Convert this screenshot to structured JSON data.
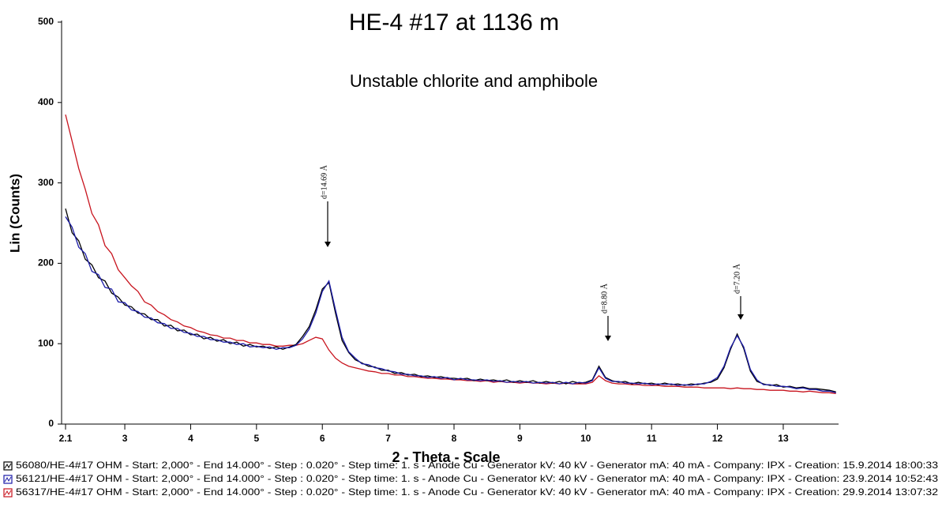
{
  "chart_data": {
    "type": "line",
    "title": "HE-4 #17 at 1136 m",
    "subtitle": "Unstable chlorite and amphibole",
    "x_label": "2 - Theta - Scale",
    "y_label": "Lin (Counts)",
    "annotations": [
      "d=14.69 Å",
      "d=8.80 Å",
      "d=7.20 Å"
    ],
    "x": [
      2.1,
      2.2,
      2.3,
      2.4,
      2.5,
      2.6,
      2.7,
      2.8,
      2.9,
      3.0,
      3.1,
      3.2,
      3.3,
      3.4,
      3.5,
      3.6,
      3.7,
      3.8,
      3.9,
      4.0,
      4.1,
      4.2,
      4.3,
      4.4,
      4.5,
      4.6,
      4.7,
      4.8,
      4.9,
      5.0,
      5.1,
      5.2,
      5.3,
      5.4,
      5.5,
      5.6,
      5.7,
      5.8,
      5.9,
      6.0,
      6.1,
      6.2,
      6.3,
      6.4,
      6.5,
      6.6,
      6.7,
      6.8,
      6.9,
      7.0,
      7.1,
      7.2,
      7.3,
      7.4,
      7.5,
      7.6,
      7.7,
      7.8,
      7.9,
      8.0,
      8.1,
      8.2,
      8.3,
      8.4,
      8.5,
      8.6,
      8.7,
      8.8,
      8.9,
      9.0,
      9.1,
      9.2,
      9.3,
      9.4,
      9.5,
      9.6,
      9.7,
      9.8,
      9.9,
      10.0,
      10.1,
      10.2,
      10.3,
      10.4,
      10.5,
      10.6,
      10.7,
      10.8,
      10.9,
      11.0,
      11.1,
      11.2,
      11.3,
      11.4,
      11.5,
      11.6,
      11.7,
      11.8,
      11.9,
      12.0,
      12.1,
      12.2,
      12.3,
      12.4,
      12.5,
      12.6,
      12.7,
      12.8,
      12.9,
      13.0,
      13.1,
      13.2,
      13.3,
      13.4,
      13.5,
      13.6,
      13.7,
      13.8
    ],
    "series": [
      {
        "name": "56080/HE-4#17 OHM - Start: 2,000° - End 14.000° - Step : 0.020° - Step time: 1. s - Anode Cu - Generator kV: 40 kV - Generator mA: 40 mA - Company: IPX - Creation: 15.9.2014 18:00:33",
        "color": "#000000",
        "values": [
          268,
          238,
          228,
          205,
          198,
          182,
          178,
          163,
          158,
          148,
          146,
          138,
          137,
          130,
          130,
          122,
          123,
          116,
          117,
          111,
          112,
          106,
          108,
          103,
          105,
          100,
          102,
          97,
          99,
          96,
          97,
          94,
          96,
          93,
          96,
          99,
          109,
          121,
          142,
          168,
          176,
          138,
          104,
          89,
          80,
          76,
          72,
          71,
          67,
          67,
          63,
          64,
          61,
          62,
          59,
          60,
          58,
          59,
          57,
          57,
          56,
          57,
          54,
          56,
          54,
          55,
          53,
          55,
          52,
          54,
          52,
          54,
          51,
          53,
          51,
          53,
          50,
          53,
          51,
          52,
          55,
          72,
          58,
          54,
          52,
          53,
          50,
          52,
          50,
          51,
          49,
          51,
          49,
          50,
          48,
          50,
          49,
          51,
          52,
          56,
          70,
          93,
          112,
          94,
          66,
          53,
          50,
          48,
          49,
          46,
          47,
          45,
          46,
          44,
          44,
          43,
          42,
          40
        ]
      },
      {
        "name": "56121/HE-4#17 OHM - Start: 2,000° - End 14.000° - Step : 0.020° - Step time: 1. s - Anode Cu - Generator kV: 40 kV - Generator mA: 40 mA - Company: IPX - Creation: 23.9.2014 10:52:43",
        "color": "#1c1ca8",
        "values": [
          258,
          245,
          220,
          212,
          190,
          186,
          170,
          168,
          152,
          151,
          142,
          140,
          133,
          132,
          126,
          125,
          119,
          119,
          114,
          113,
          109,
          109,
          105,
          105,
          102,
          102,
          99,
          100,
          96,
          97,
          95,
          96,
          93,
          95,
          95,
          98,
          106,
          118,
          138,
          165,
          178,
          142,
          108,
          90,
          82,
          75,
          74,
          70,
          69,
          66,
          65,
          62,
          62,
          60,
          60,
          58,
          59,
          57,
          58,
          55,
          57,
          55,
          55,
          54,
          55,
          53,
          54,
          52,
          53,
          52,
          53,
          51,
          52,
          51,
          52,
          50,
          52,
          50,
          52,
          51,
          54,
          70,
          57,
          53,
          53,
          51,
          51,
          50,
          51,
          49,
          50,
          49,
          50,
          48,
          49,
          48,
          50,
          50,
          53,
          58,
          72,
          95,
          110,
          96,
          68,
          55,
          49,
          49,
          47,
          47,
          46,
          44,
          45,
          43,
          43,
          41,
          41,
          39
        ]
      },
      {
        "name": "56317/HE-4#17 OHM - Start: 2,000° - End 14.000° - Step : 0.020° - Step time: 1. s - Anode Cu - Generator kV: 40 kV - Generator mA: 40 mA - Company: IPX - Creation: 29.9.2014 13:07:32",
        "color": "#c8141e",
        "values": [
          385,
          352,
          318,
          292,
          262,
          248,
          222,
          212,
          192,
          182,
          172,
          165,
          152,
          148,
          140,
          136,
          130,
          127,
          122,
          120,
          116,
          114,
          111,
          110,
          107,
          107,
          104,
          104,
          101,
          101,
          99,
          99,
          97,
          97,
          98,
          98,
          100,
          104,
          108,
          106,
          92,
          82,
          76,
          72,
          70,
          68,
          66,
          65,
          63,
          63,
          61,
          61,
          59,
          59,
          58,
          57,
          57,
          56,
          56,
          55,
          55,
          54,
          54,
          53,
          54,
          52,
          53,
          52,
          52,
          51,
          52,
          51,
          51,
          50,
          51,
          50,
          51,
          50,
          50,
          50,
          52,
          60,
          54,
          51,
          50,
          50,
          49,
          49,
          48,
          48,
          48,
          47,
          47,
          47,
          46,
          46,
          46,
          45,
          45,
          45,
          45,
          44,
          45,
          44,
          44,
          43,
          43,
          42,
          42,
          42,
          41,
          41,
          40,
          41,
          40,
          39,
          39,
          38
        ]
      }
    ],
    "xlim": [
      2.04,
      13.84
    ],
    "xticks": [
      2.1,
      3,
      4,
      5,
      6,
      7,
      8,
      9,
      10,
      11,
      12,
      13
    ],
    "ylim": [
      0,
      500
    ],
    "yticks": [
      0,
      100,
      200,
      300,
      400,
      500
    ]
  }
}
